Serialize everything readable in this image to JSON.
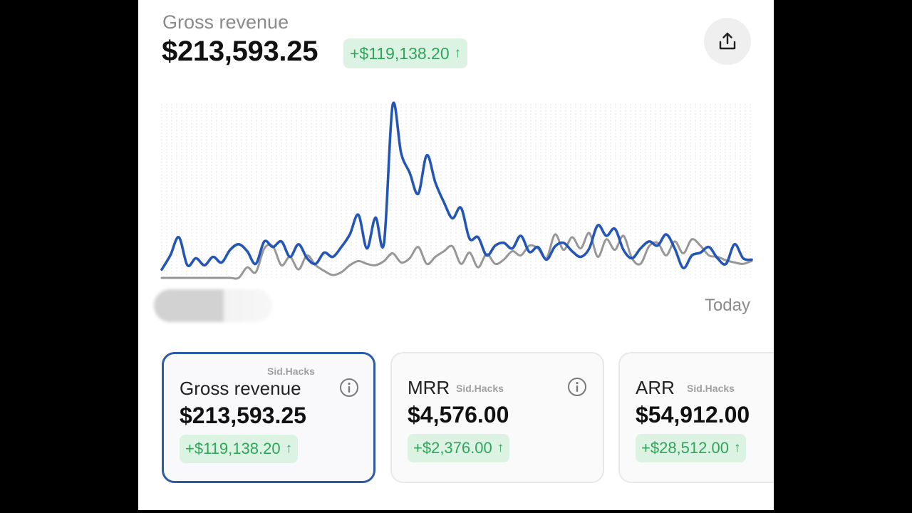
{
  "header": {
    "title": "Gross revenue",
    "value": "$213,593.25",
    "delta": "+$119,138.20",
    "delta_arrow": "↑"
  },
  "toolbar": {
    "export_icon": "upload-share-icon"
  },
  "chart": {
    "end_label": "Today",
    "colors": {
      "current": "#2456b8",
      "previous": "#979797",
      "positive_text": "#2ea55a",
      "positive_bg": "#dcf3e3",
      "accent": "#2d5ba5"
    }
  },
  "chart_data": {
    "type": "line",
    "series": [
      {
        "values": [
          12,
          32,
          58,
          18,
          28,
          18,
          30,
          22,
          40,
          48,
          38,
          20,
          52,
          44,
          52,
          30,
          48,
          28,
          20,
          36,
          30,
          44,
          62,
          90,
          42,
          86,
          50,
          246,
          178,
          150,
          120,
          175,
          136,
          108,
          85,
          100,
          56,
          58,
          32,
          46,
          50,
          42,
          60,
          37,
          44,
          26,
          45,
          50,
          38,
          30,
          42,
          75,
          60,
          70,
          40,
          28,
          42,
          52,
          46,
          62,
          42,
          14,
          32,
          36,
          44,
          28,
          20,
          48,
          28,
          26
        ]
      },
      {
        "values": [
          0,
          0,
          0,
          0,
          0,
          0,
          0,
          0,
          0,
          0,
          15,
          8,
          42,
          45,
          18,
          30,
          12,
          32,
          18,
          10,
          4,
          8,
          18,
          24,
          20,
          18,
          24,
          35,
          22,
          28,
          44,
          20,
          30,
          38,
          45,
          20,
          36,
          15,
          34,
          20,
          26,
          38,
          32,
          46,
          42,
          28,
          62,
          40,
          58,
          42,
          64,
          30,
          55,
          40,
          60,
          28,
          20,
          45,
          50,
          32,
          52,
          35,
          55,
          46,
          32,
          30,
          25,
          22,
          20,
          24
        ]
      }
    ],
    "x_end_label": "Today",
    "grid": true
  },
  "cards": [
    {
      "title": "Gross revenue",
      "value": "$213,593.25",
      "delta": "+$119,138.20",
      "arrow": "↑",
      "watermark": "Sid.Hacks",
      "active": true
    },
    {
      "title": "MRR",
      "value": "$4,576.00",
      "delta": "+$2,376.00",
      "arrow": "↑",
      "watermark": "Sid.Hacks",
      "active": false
    },
    {
      "title": "ARR",
      "value": "$54,912.00",
      "delta": "+$28,512.00",
      "arrow": "↑",
      "watermark": "Sid.Hacks",
      "active": false
    }
  ]
}
